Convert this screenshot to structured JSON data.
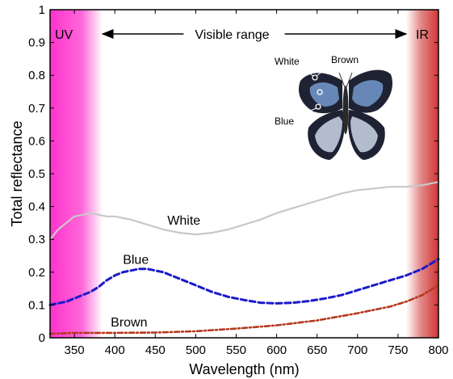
{
  "chart_data": {
    "type": "line",
    "xlabel": "Wavelength (nm)",
    "ylabel": "Total reflectance",
    "xlim": [
      320,
      800
    ],
    "ylim": [
      0,
      1
    ],
    "xticks": [
      350,
      400,
      450,
      500,
      550,
      600,
      650,
      700,
      750,
      800
    ],
    "yticks": [
      0,
      0.1,
      0.2,
      0.3,
      0.4,
      0.5,
      0.6,
      0.7,
      0.8,
      0.9,
      1
    ],
    "ytick_labels": [
      "0",
      "0.1",
      "0.2",
      "0.3",
      "0.4",
      "0.5",
      "0.6",
      "0.7",
      "0.8",
      "0.9",
      "1"
    ],
    "grid": false,
    "regions": [
      {
        "label": "UV",
        "from": 320,
        "to": 385,
        "color": "#ff33cc"
      },
      {
        "label": "Visible range",
        "from": 385,
        "to": 760
      },
      {
        "label": "IR",
        "from": 760,
        "to": 800,
        "color": "#cc2a2a"
      }
    ],
    "series": [
      {
        "name": "White",
        "color": "#c8c8c8",
        "style": "solid",
        "x": [
          320,
          330,
          340,
          350,
          360,
          370,
          380,
          390,
          400,
          420,
          440,
          460,
          480,
          500,
          520,
          540,
          560,
          580,
          600,
          620,
          640,
          660,
          680,
          700,
          720,
          740,
          760,
          780,
          800
        ],
        "values": [
          0.3,
          0.33,
          0.35,
          0.37,
          0.375,
          0.38,
          0.375,
          0.37,
          0.37,
          0.36,
          0.345,
          0.33,
          0.32,
          0.315,
          0.32,
          0.33,
          0.345,
          0.36,
          0.38,
          0.395,
          0.41,
          0.425,
          0.44,
          0.45,
          0.455,
          0.46,
          0.46,
          0.465,
          0.475
        ]
      },
      {
        "name": "Blue",
        "color": "#1a1acc",
        "style": "dashed",
        "x": [
          320,
          340,
          360,
          370,
          380,
          390,
          400,
          410,
          420,
          430,
          440,
          450,
          460,
          470,
          480,
          500,
          520,
          540,
          560,
          580,
          600,
          620,
          640,
          660,
          680,
          700,
          720,
          740,
          760,
          780,
          800
        ],
        "values": [
          0.1,
          0.11,
          0.13,
          0.14,
          0.155,
          0.175,
          0.19,
          0.2,
          0.205,
          0.21,
          0.21,
          0.205,
          0.2,
          0.19,
          0.18,
          0.16,
          0.14,
          0.125,
          0.115,
          0.107,
          0.105,
          0.107,
          0.112,
          0.12,
          0.13,
          0.145,
          0.16,
          0.175,
          0.19,
          0.21,
          0.24
        ]
      },
      {
        "name": "Brown",
        "color": "#b5391e",
        "style": "dashdot",
        "x": [
          320,
          350,
          400,
          450,
          500,
          550,
          600,
          650,
          700,
          740,
          760,
          780,
          800
        ],
        "values": [
          0.012,
          0.015,
          0.015,
          0.016,
          0.02,
          0.028,
          0.038,
          0.053,
          0.075,
          0.095,
          0.11,
          0.13,
          0.16
        ]
      }
    ],
    "annotations": {
      "uv_label": "UV",
      "visible_label": "Visible range",
      "ir_label": "IR",
      "white_label": "White",
      "blue_label": "Blue",
      "brown_label": "Brown"
    },
    "inset": {
      "type": "butterfly-photo",
      "labels": {
        "white": "White",
        "brown": "Brown",
        "blue": "Blue"
      },
      "colors": {
        "wing_dark": "#1e2233",
        "wing_blue": "#6f93c4",
        "wing_light": "#d7e3f2",
        "body": "#2a2a2a"
      }
    }
  }
}
